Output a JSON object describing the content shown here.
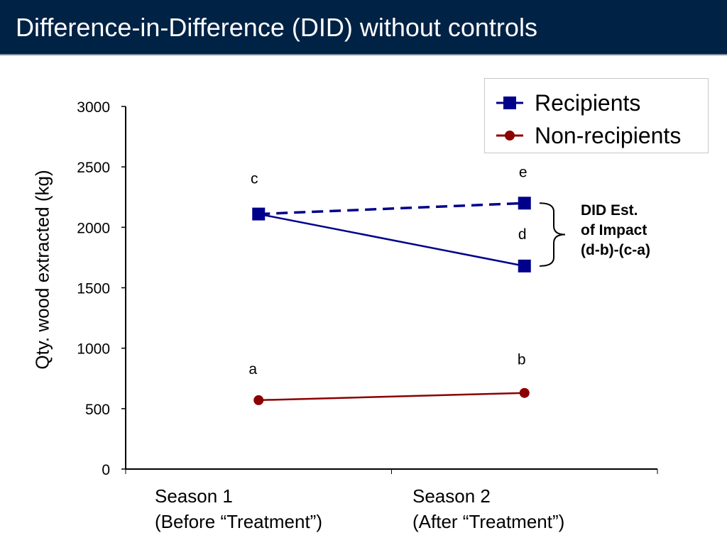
{
  "slide": {
    "title": "Difference-in-Difference (DID) without controls"
  },
  "chart_data": {
    "type": "line",
    "categories": [
      [
        "Season 1",
        "(Before “Treatment”)"
      ],
      [
        "Season 2",
        "(After “Treatment”)"
      ]
    ],
    "ylabel": "Qty. wood extracted (kg)",
    "ylim": [
      0,
      3000
    ],
    "yticks": [
      0,
      500,
      1000,
      1500,
      2000,
      2500,
      3000
    ],
    "series": [
      {
        "name": "Recipients",
        "values": [
          2110,
          1680
        ],
        "color": "#00008b",
        "marker": "square",
        "line": "solid"
      },
      {
        "name": "Non-recipients",
        "values": [
          570,
          630
        ],
        "color": "#8b0000",
        "marker": "circle",
        "line": "solid"
      }
    ],
    "counterfactual": {
      "values": [
        2110,
        2200
      ],
      "color": "#00008b",
      "line": "dashed"
    },
    "point_labels": [
      {
        "text": "a",
        "category": 0,
        "value": 570
      },
      {
        "text": "b",
        "category": 1,
        "value": 630
      },
      {
        "text": "c",
        "category": 0,
        "value": 2110
      },
      {
        "text": "d",
        "category": 1,
        "value": 1680
      },
      {
        "text": "e",
        "category": 1,
        "value": 2200
      }
    ],
    "legend": {
      "placement": "top-right"
    },
    "annotation": [
      "DID Est.",
      "of Impact",
      "(d-b)-(c-a)"
    ],
    "grid": false
  }
}
